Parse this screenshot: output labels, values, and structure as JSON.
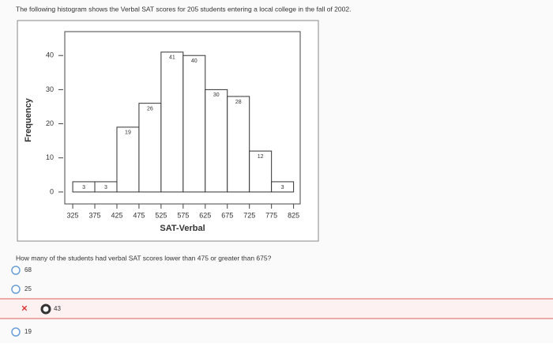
{
  "header": {
    "text": "The following histogram shows the Verbal SAT scores for 205 students entering a local college in the fall of 2002."
  },
  "chart_data": {
    "type": "histogram",
    "xlabel": "SAT-Verbal",
    "ylabel": "Frequency",
    "bins": [
      325,
      375,
      425,
      475,
      525,
      575,
      625,
      675,
      725,
      775,
      825
    ],
    "values": [
      3,
      3,
      19,
      26,
      41,
      40,
      30,
      28,
      12,
      3
    ],
    "color": "#ffffff",
    "xlim": [
      307,
      840
    ],
    "xticks": [
      325,
      375,
      425,
      475,
      525,
      575,
      625,
      675,
      725,
      775,
      825
    ],
    "ylim": [
      -3.5,
      47
    ],
    "yticks": [
      0,
      10,
      20,
      30,
      40
    ]
  },
  "question": {
    "text": "How many of the students had verbal SAT scores lower than 475 or greater than 675?"
  },
  "options": [
    "68",
    "25",
    "43",
    "19"
  ]
}
